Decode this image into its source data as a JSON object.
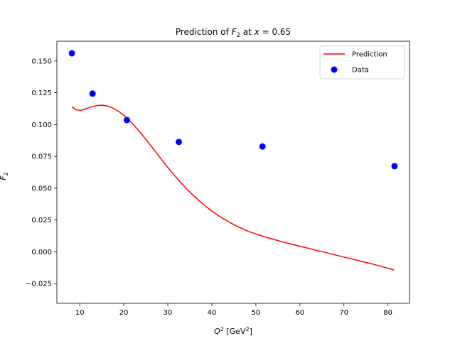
{
  "chart_data": {
    "type": "line",
    "title": "Prediction of F₂ at x = 0.65",
    "xlabel": "Q² [GeV²]",
    "ylabel": "F₂",
    "xlim": [
      4.8,
      84.9
    ],
    "ylim": [
      -0.0405,
      0.1655
    ],
    "x_ticks": [
      10,
      20,
      30,
      40,
      50,
      60,
      70,
      80
    ],
    "y_ticks": [
      -0.025,
      0.0,
      0.025,
      0.05,
      0.075,
      0.1,
      0.125,
      0.15
    ],
    "y_tick_labels": [
      "−0.025",
      "0.000",
      "0.025",
      "0.050",
      "0.075",
      "0.100",
      "0.125",
      "0.150"
    ],
    "grid": false,
    "legend_position": "top-right",
    "series": [
      {
        "name": "Prediction",
        "kind": "line",
        "color": "#ff0000",
        "x": [
          8.2,
          9.0,
          10.0,
          11.0,
          12.0,
          13.0,
          14.0,
          15.0,
          16.0,
          17.0,
          18.0,
          19.0,
          20.0,
          21.0,
          22.0,
          23.0,
          24.0,
          25.0,
          26.0,
          27.0,
          28.0,
          29.0,
          30.0,
          31.0,
          32.0,
          33.0,
          34.0,
          35.0,
          36.0,
          37.0,
          38.0,
          39.0,
          40.0,
          42.0,
          44.0,
          46.0,
          48.0,
          50.0,
          52.0,
          54.0,
          56.0,
          58.0,
          60.0,
          62.0,
          64.0,
          66.0,
          68.0,
          70.0,
          72.0,
          74.0,
          76.0,
          78.0,
          80.0,
          81.4
        ],
        "y": [
          0.1142,
          0.1118,
          0.1111,
          0.1118,
          0.1132,
          0.1143,
          0.115,
          0.1152,
          0.1148,
          0.1138,
          0.1121,
          0.1099,
          0.1072,
          0.1041,
          0.1006,
          0.0968,
          0.0927,
          0.0884,
          0.084,
          0.0795,
          0.075,
          0.0706,
          0.0663,
          0.0621,
          0.0581,
          0.0542,
          0.0505,
          0.047,
          0.0437,
          0.0405,
          0.0375,
          0.0347,
          0.032,
          0.0273,
          0.0232,
          0.0196,
          0.0165,
          0.014,
          0.0118,
          0.0098,
          0.0079,
          0.0061,
          0.0044,
          0.0027,
          0.001,
          -0.0007,
          -0.0024,
          -0.0041,
          -0.0058,
          -0.0075,
          -0.0092,
          -0.011,
          -0.0129,
          -0.0143
        ]
      },
      {
        "name": "Data",
        "kind": "scatter",
        "color": "#0000ff",
        "x": [
          8.2,
          12.9,
          20.7,
          32.5,
          51.5,
          81.5
        ],
        "y": [
          0.156,
          0.1243,
          0.1035,
          0.0863,
          0.0828,
          0.0673
        ]
      }
    ]
  }
}
